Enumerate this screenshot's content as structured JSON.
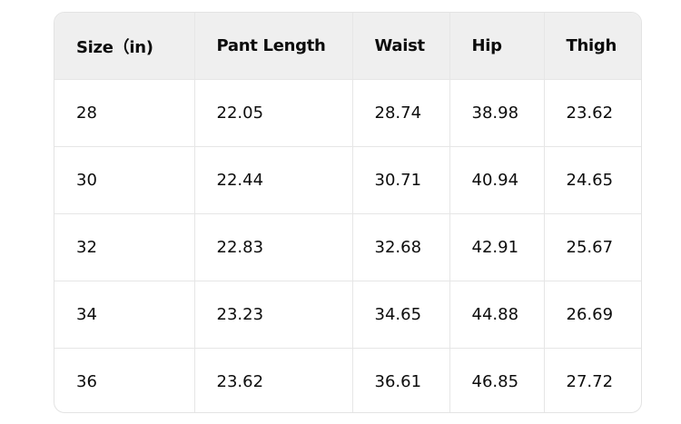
{
  "table": {
    "headers": [
      "Size（in)",
      "Pant Length",
      "Waist",
      "Hip",
      "Thigh"
    ],
    "rows": [
      [
        "28",
        "22.05",
        "28.74",
        "38.98",
        "23.62"
      ],
      [
        "30",
        "22.44",
        "30.71",
        "40.94",
        "24.65"
      ],
      [
        "32",
        "22.83",
        "32.68",
        "42.91",
        "25.67"
      ],
      [
        "34",
        "23.23",
        "34.65",
        "44.88",
        "26.69"
      ],
      [
        "36",
        "23.62",
        "36.61",
        "46.85",
        "27.72"
      ]
    ]
  }
}
